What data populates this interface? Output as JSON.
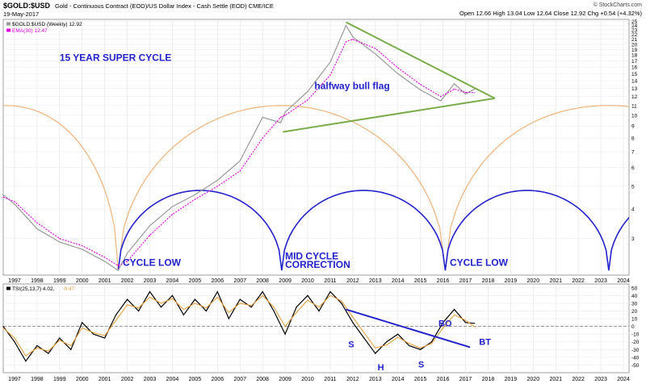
{
  "header": {
    "symbol": "$GOLD:$USD",
    "description": "Gold - Continuous Contract (EOD)/US Dollar Index - Cash Settle (EOD) CME/ICE",
    "date": "19-May-2017",
    "watermark": "© StockCharts.com",
    "quote": "Open 12.66 High 13.04 Low 12.64 Close 12.92 Chg +0.54 (+4.32%)",
    "quote_color": "#000000"
  },
  "chart_data": [
    {
      "type": "line",
      "title": "",
      "legend": [
        {
          "label": "$GOLD:$USD (Weekly) 12.92",
          "color": "#999999"
        },
        {
          "label": "EMA(30) 12.47",
          "color": "#e000e0"
        }
      ],
      "x": [
        1996.5,
        1997,
        1998,
        1999,
        2000,
        2001,
        2001.6,
        2002,
        2003,
        2004,
        2005,
        2006,
        2007,
        2008,
        2008.8,
        2009,
        2010,
        2011,
        2011.7,
        2012,
        2013,
        2014,
        2015,
        2015.9,
        2016.5,
        2017,
        2017.4
      ],
      "series": [
        {
          "name": "$GOLD:$USD (Weekly)",
          "color": "#999999",
          "values": [
            4.6,
            4.2,
            3.3,
            2.9,
            2.7,
            2.4,
            2.2,
            2.6,
            3.4,
            4.1,
            4.6,
            5.3,
            6.4,
            9.8,
            9.3,
            10.3,
            12.6,
            16.8,
            24.0,
            21.5,
            18.2,
            15.0,
            12.8,
            11.5,
            13.6,
            12.3,
            12.92
          ]
        },
        {
          "name": "EMA(30)",
          "color": "#e000e0",
          "values": [
            4.5,
            4.3,
            3.5,
            3.0,
            2.8,
            2.5,
            2.3,
            2.4,
            3.1,
            3.8,
            4.4,
            5.0,
            5.8,
            8.0,
            9.8,
            10.0,
            11.6,
            14.8,
            20.5,
            21.0,
            19.2,
            15.9,
            13.5,
            12.0,
            12.9,
            12.5,
            12.47
          ]
        }
      ],
      "ylim": [
        2.1,
        25.5
      ],
      "yscale": "log",
      "yticks": [
        3,
        4,
        5,
        6,
        7,
        8,
        9,
        10,
        11,
        12,
        13,
        14,
        15,
        16,
        17,
        18,
        19,
        20,
        21,
        22,
        23,
        24,
        25
      ],
      "xlim": [
        1996.5,
        2024.25
      ],
      "xticks": [
        1997,
        1998,
        1999,
        2000,
        2001,
        2002,
        2003,
        2004,
        2005,
        2006,
        2007,
        2008,
        2009,
        2010,
        2011,
        2012,
        2013,
        2014,
        2015,
        2016,
        2017,
        2018,
        2019,
        2020,
        2021,
        2022,
        2023,
        2024
      ],
      "grid": true,
      "trendlines": [
        {
          "from": [
            2011.7,
            24.8
          ],
          "to": [
            2018.3,
            11.8
          ],
          "color": "#7aac4c"
        },
        {
          "from": [
            2008.9,
            8.5
          ],
          "to": [
            2018.3,
            11.8
          ],
          "color": "#7aac4c"
        }
      ],
      "cycles": [
        {
          "name": "super",
          "color": "#f0b27a",
          "peak": 11,
          "lows": [
            [
              1991.6,
              4.0
            ],
            [
              2001.6,
              2.2
            ],
            [
              2016.1,
              2.2
            ],
            [
              2030.6,
              4.0
            ]
          ]
        },
        {
          "name": "mid",
          "color": "#2222cc",
          "peak": 4.8,
          "lows": [
            [
              2001.6,
              2.2
            ],
            [
              2008.85,
              2.2
            ],
            [
              2016.1,
              2.2
            ],
            [
              2023.35,
              2.2
            ],
            [
              2030.6,
              2.2
            ]
          ]
        }
      ],
      "annotations": [
        {
          "text": "15 YEAR SUPER CYCLE",
          "x": 1999.0,
          "y": 17.0
        },
        {
          "text": "halfway bull flag",
          "x": 2010.3,
          "y": 12.9
        },
        {
          "text": "CYCLE LOW",
          "x": 2001.8,
          "y": 2.3
        },
        {
          "text": "MID CYCLE",
          "x": 2009.0,
          "y": 2.45
        },
        {
          "text": "CORRECTION",
          "x": 2009.0,
          "y": 2.25
        },
        {
          "text": "CYCLE LOW",
          "x": 2016.3,
          "y": 2.3
        }
      ]
    },
    {
      "type": "line",
      "title": "",
      "legend": [
        {
          "label": "TSI(25,13,7) 4.02,",
          "color": "#000000"
        },
        {
          "label": "-0.47",
          "color": "#e8a040"
        }
      ],
      "x": [
        1996.5,
        1997,
        1997.5,
        1998,
        1998.5,
        1999,
        1999.5,
        2000,
        2000.5,
        2001,
        2001.5,
        2002,
        2002.5,
        2003,
        2003.5,
        2004,
        2004.5,
        2005,
        2005.5,
        2006,
        2006.5,
        2007,
        2007.5,
        2008,
        2008.5,
        2009,
        2009.5,
        2010,
        2010.5,
        2011,
        2011.5,
        2012,
        2012.5,
        2013,
        2013.5,
        2014,
        2014.5,
        2015,
        2015.5,
        2016,
        2016.5,
        2017,
        2017.4
      ],
      "series": [
        {
          "name": "TSI",
          "color": "#000000",
          "values": [
            0,
            -20,
            -45,
            -25,
            -35,
            -15,
            -30,
            5,
            -10,
            -15,
            15,
            35,
            20,
            45,
            25,
            40,
            15,
            35,
            20,
            45,
            10,
            35,
            25,
            45,
            20,
            -10,
            25,
            40,
            20,
            45,
            30,
            5,
            -15,
            -35,
            -20,
            -10,
            -25,
            -30,
            -20,
            5,
            22,
            5,
            4.02
          ]
        },
        {
          "name": "Signal",
          "color": "#e8a040",
          "values": [
            -2,
            -15,
            -38,
            -28,
            -32,
            -18,
            -25,
            -2,
            -8,
            -12,
            8,
            28,
            24,
            38,
            30,
            36,
            22,
            30,
            24,
            38,
            18,
            30,
            27,
            40,
            25,
            0,
            18,
            34,
            25,
            40,
            33,
            12,
            -8,
            -28,
            -24,
            -14,
            -22,
            -28,
            -22,
            -2,
            15,
            8,
            -0.47
          ]
        }
      ],
      "ylim": [
        -60,
        55
      ],
      "yticks": [
        -50,
        -40,
        -30,
        -20,
        -10,
        0,
        10,
        20,
        30,
        40,
        50
      ],
      "xlim": [
        1996.5,
        2024.25
      ],
      "zero_line": true,
      "trendlines": [
        {
          "from": [
            2011.7,
            22
          ],
          "to": [
            2017.2,
            -27
          ],
          "color": "#2222cc"
        }
      ],
      "annotations": [
        {
          "text": "S",
          "x": 2011.8,
          "y": -27
        },
        {
          "text": "H",
          "x": 2013.1,
          "y": -57
        },
        {
          "text": "S",
          "x": 2014.9,
          "y": -53
        },
        {
          "text": "BO",
          "x": 2015.8,
          "y": 0
        },
        {
          "text": "BT",
          "x": 2017.6,
          "y": -24
        }
      ]
    }
  ]
}
